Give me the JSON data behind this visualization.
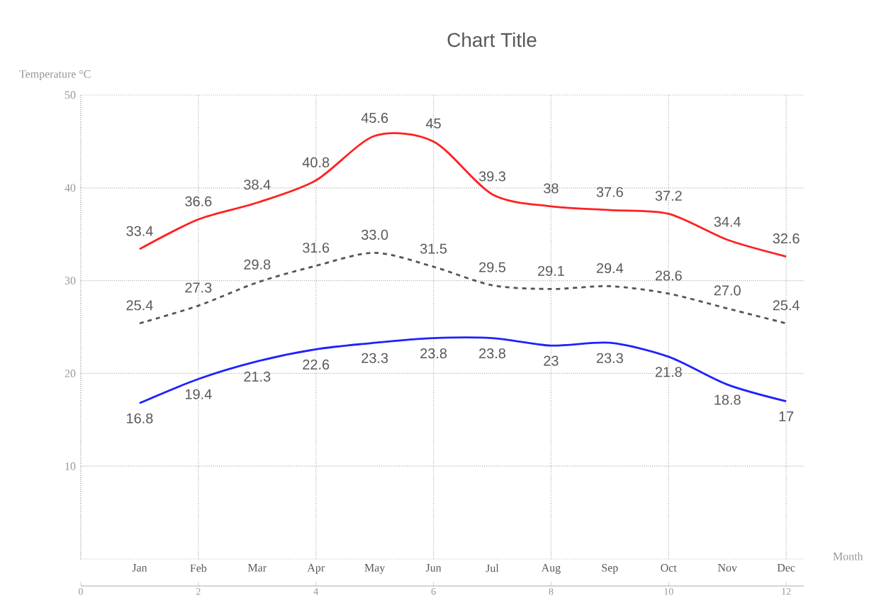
{
  "chart_data": {
    "type": "line",
    "title": "Chart Title",
    "ylabel": "Temperature °C",
    "xlabel": "Month",
    "categories": [
      "Jan",
      "Feb",
      "Mar",
      "Apr",
      "May",
      "Jun",
      "Jul",
      "Aug",
      "Sep",
      "Oct",
      "Nov",
      "Dec"
    ],
    "x2lim": [
      0,
      12.3
    ],
    "x2ticks": [
      0,
      2,
      4,
      6,
      8,
      10,
      12
    ],
    "ylim": [
      0,
      50
    ],
    "yticks": [
      10,
      20,
      30,
      40,
      50
    ],
    "grid": true,
    "marker": "none",
    "series": [
      {
        "color": "#ff2020",
        "line_style": "solid",
        "values": [
          33.4,
          36.6,
          38.4,
          40.8,
          45.6,
          45,
          39.3,
          38,
          37.6,
          37.2,
          34.4,
          32.6
        ],
        "value_labels": [
          "33.4",
          "36.6",
          "38.4",
          "40.8",
          "45.6",
          "45",
          "39.3",
          "38",
          "37.6",
          "37.2",
          "34.4",
          "32.6"
        ]
      },
      {
        "color": "#555555",
        "line_style": "dashed",
        "values": [
          25.4,
          27.3,
          29.8,
          31.6,
          33.0,
          31.5,
          29.5,
          29.1,
          29.4,
          28.6,
          27.0,
          25.4
        ],
        "value_labels": [
          "25.4",
          "27.3",
          "29.8",
          "31.6",
          "33.0",
          "31.5",
          "29.5",
          "29.1",
          "29.4",
          "28.6",
          "27.0",
          "25.4"
        ]
      },
      {
        "color": "#2020ff",
        "line_style": "solid",
        "values": [
          16.8,
          19.4,
          21.3,
          22.6,
          23.3,
          23.8,
          23.8,
          23,
          23.3,
          21.8,
          18.8,
          17
        ],
        "value_labels": [
          "16.8",
          "19.4",
          "21.3",
          "22.6",
          "23.3",
          "23.8",
          "23.8",
          "23",
          "23.3",
          "21.8",
          "18.8",
          "17"
        ]
      }
    ]
  }
}
